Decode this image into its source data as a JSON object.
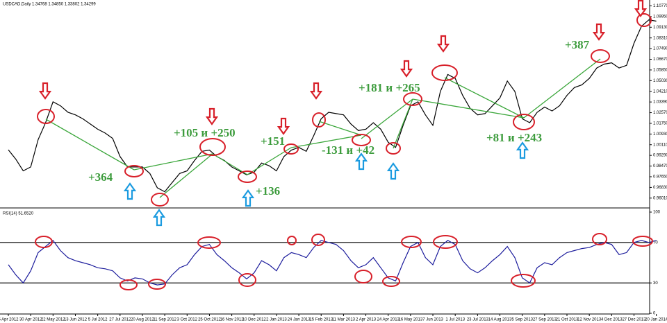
{
  "chart_data": [
    {
      "type": "line",
      "title": "USDCAD,Daily  1.34768 1.34850 1.33802 1.34299",
      "color": "#000000",
      "values": [
        0.9972,
        0.99,
        0.981,
        0.984,
        1.005,
        1.018,
        1.034,
        1.031,
        1.026,
        1.024,
        1.021,
        1.017,
        1.013,
        1.01,
        1.006,
        0.992,
        0.984,
        0.984,
        0.984,
        0.979,
        0.968,
        0.965,
        0.972,
        0.979,
        0.981,
        0.989,
        0.996,
        0.997,
        0.992,
        0.989,
        0.984,
        0.981,
        0.978,
        0.98,
        0.987,
        0.985,
        0.981,
        0.992,
        0.997,
        0.999,
        0.996,
        1.008,
        1.021,
        1.026,
        1.025,
        1.024,
        1.017,
        1.012,
        1.013,
        1.018,
        1.013,
        1.003,
        0.999,
        1.016,
        1.031,
        1.034,
        1.024,
        1.016,
        1.042,
        1.055,
        1.052,
        1.039,
        1.029,
        1.024,
        1.025,
        1.031,
        1.037,
        1.05,
        1.042,
        1.021,
        1.018,
        1.026,
        1.03,
        1.027,
        1.031,
        1.039,
        1.045,
        1.047,
        1.052,
        1.06,
        1.063,
        1.064,
        1.06,
        1.062,
        1.079,
        1.092,
        1.097,
        1.096
      ],
      "ylim": [
        0.9536,
        1.1103
      ],
      "yticks": [
        {
          "value": 1.1077,
          "label": "1.10770"
        },
        {
          "value": 1.0995,
          "label": "1.09950"
        },
        {
          "value": 1.0913,
          "label": "1.09130"
        },
        {
          "value": 1.0831,
          "label": "1.08310"
        },
        {
          "value": 1.0749,
          "label": "1.07490"
        },
        {
          "value": 1.0667,
          "label": "1.06670"
        },
        {
          "value": 1.0585,
          "label": "1.05850"
        },
        {
          "value": 1.0503,
          "label": "1.05030"
        },
        {
          "value": 1.0421,
          "label": "1.04210"
        },
        {
          "value": 1.0339,
          "label": "1.03390"
        },
        {
          "value": 1.0257,
          "label": "1.02570"
        },
        {
          "value": 1.0175,
          "label": "1.01750"
        },
        {
          "value": 1.0093,
          "label": "1.00930"
        },
        {
          "value": 1.0011,
          "label": "1.00110"
        },
        {
          "value": 0.9929,
          "label": "0.99290"
        },
        {
          "value": 0.9847,
          "label": "0.98470"
        },
        {
          "value": 0.9765,
          "label": "0.97650"
        },
        {
          "value": 0.9683,
          "label": "0.96830"
        },
        {
          "value": 0.9601,
          "label": "0.96010"
        }
      ],
      "annotations": [
        "+364",
        "+105 и +250",
        "+151",
        "+181 и +265",
        "-131 и +42",
        "+136",
        "+81 и +243",
        "+387"
      ]
    },
    {
      "type": "line",
      "title": "RSI(14) 51.6520",
      "color": "#1c1c9c",
      "categories": [
        "6 Apr 2012",
        null,
        null,
        "30 Apr 2012",
        null,
        null,
        "22 May 2012",
        null,
        null,
        "13 Jun 2012",
        null,
        null,
        "5 Jul 2012",
        null,
        null,
        "27 Jul 2012",
        null,
        null,
        "20 Aug 2012",
        null,
        null,
        "11 Sep 2012",
        null,
        null,
        "3 Oct 2012",
        null,
        null,
        "25 Oct 2012",
        null,
        null,
        "16 Nov 2012",
        null,
        null,
        "10 Dec 2012",
        null,
        null,
        "2 Jan 2013",
        null,
        null,
        "24 Jan 2013",
        null,
        null,
        "15 Feb 2013",
        null,
        null,
        "11 Mar 2013",
        null,
        null,
        "2 Apr 2013",
        null,
        null,
        "24 Apr 2013",
        null,
        null,
        "16 May 2013",
        null,
        null,
        "7 Jun 2013",
        null,
        null,
        "1 Jul 2013",
        null,
        null,
        "23 Jul 2013",
        null,
        null,
        "14 Aug 2013",
        null,
        null,
        "5 Sep 2013",
        null,
        null,
        "27 Sep 2013",
        null,
        null,
        "21 Oct 2013",
        null,
        null,
        "12 Nov 2013",
        null,
        null,
        "4 Dec 2013",
        null,
        null,
        "27 Dec 2013",
        null,
        null,
        "20 Jan 2014"
      ],
      "values": [
        48,
        38,
        30,
        42,
        60,
        66,
        72,
        62,
        55,
        52,
        50,
        48,
        45,
        44,
        42,
        35,
        32,
        35,
        34,
        30,
        28,
        29,
        38,
        45,
        48,
        58,
        66,
        68,
        58,
        52,
        45,
        40,
        34,
        40,
        52,
        48,
        42,
        55,
        60,
        58,
        55,
        65,
        72,
        70,
        68,
        62,
        52,
        45,
        48,
        55,
        45,
        35,
        32,
        50,
        66,
        70,
        55,
        48,
        66,
        72,
        68,
        52,
        44,
        40,
        45,
        52,
        58,
        66,
        55,
        35,
        30,
        45,
        50,
        48,
        55,
        60,
        62,
        64,
        65,
        68,
        70,
        68,
        58,
        60,
        70,
        72,
        70,
        72
      ],
      "ylim": [
        0,
        100
      ],
      "yticks": [
        0,
        30,
        70,
        100
      ]
    }
  ]
}
